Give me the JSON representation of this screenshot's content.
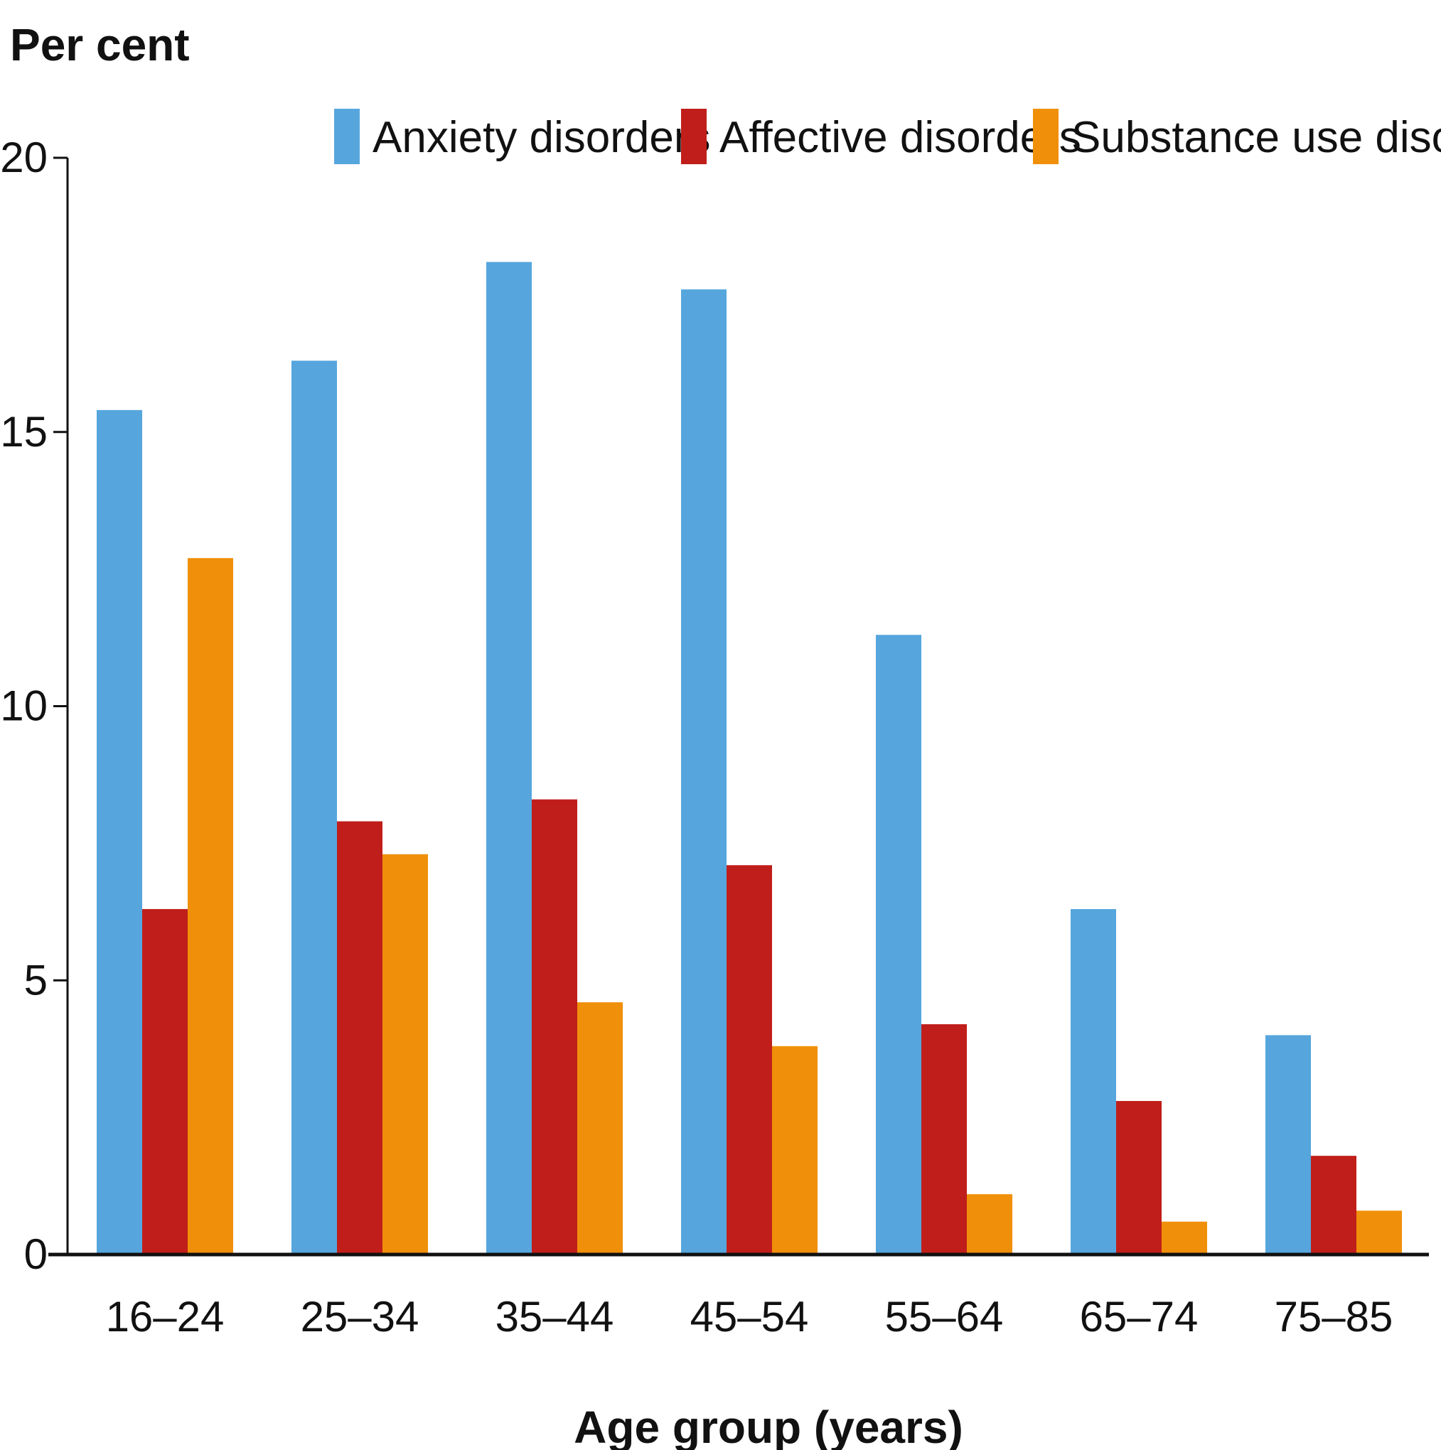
{
  "chart_data": {
    "type": "bar",
    "title": "",
    "ylabel": "Per cent",
    "xlabel": "Age group (years)",
    "ylim": [
      0,
      20
    ],
    "yticks": [
      0,
      5,
      10,
      15,
      20
    ],
    "categories": [
      "16–24",
      "25–34",
      "35–44",
      "45–54",
      "55–64",
      "65–74",
      "75–85"
    ],
    "series": [
      {
        "name": "Anxiety disorders",
        "color": "#56a6dd",
        "values": [
          15.4,
          16.3,
          18.1,
          17.6,
          11.3,
          6.3,
          4.0
        ]
      },
      {
        "name": "Affective disorders",
        "color": "#c01e1a",
        "values": [
          6.3,
          7.9,
          8.3,
          7.1,
          4.2,
          2.8,
          1.8
        ]
      },
      {
        "name": "Substance use disorders",
        "color": "#f0900a",
        "values": [
          12.7,
          7.3,
          4.6,
          3.8,
          1.1,
          0.6,
          0.8
        ]
      }
    ],
    "grid": false,
    "legend_position": "top"
  }
}
